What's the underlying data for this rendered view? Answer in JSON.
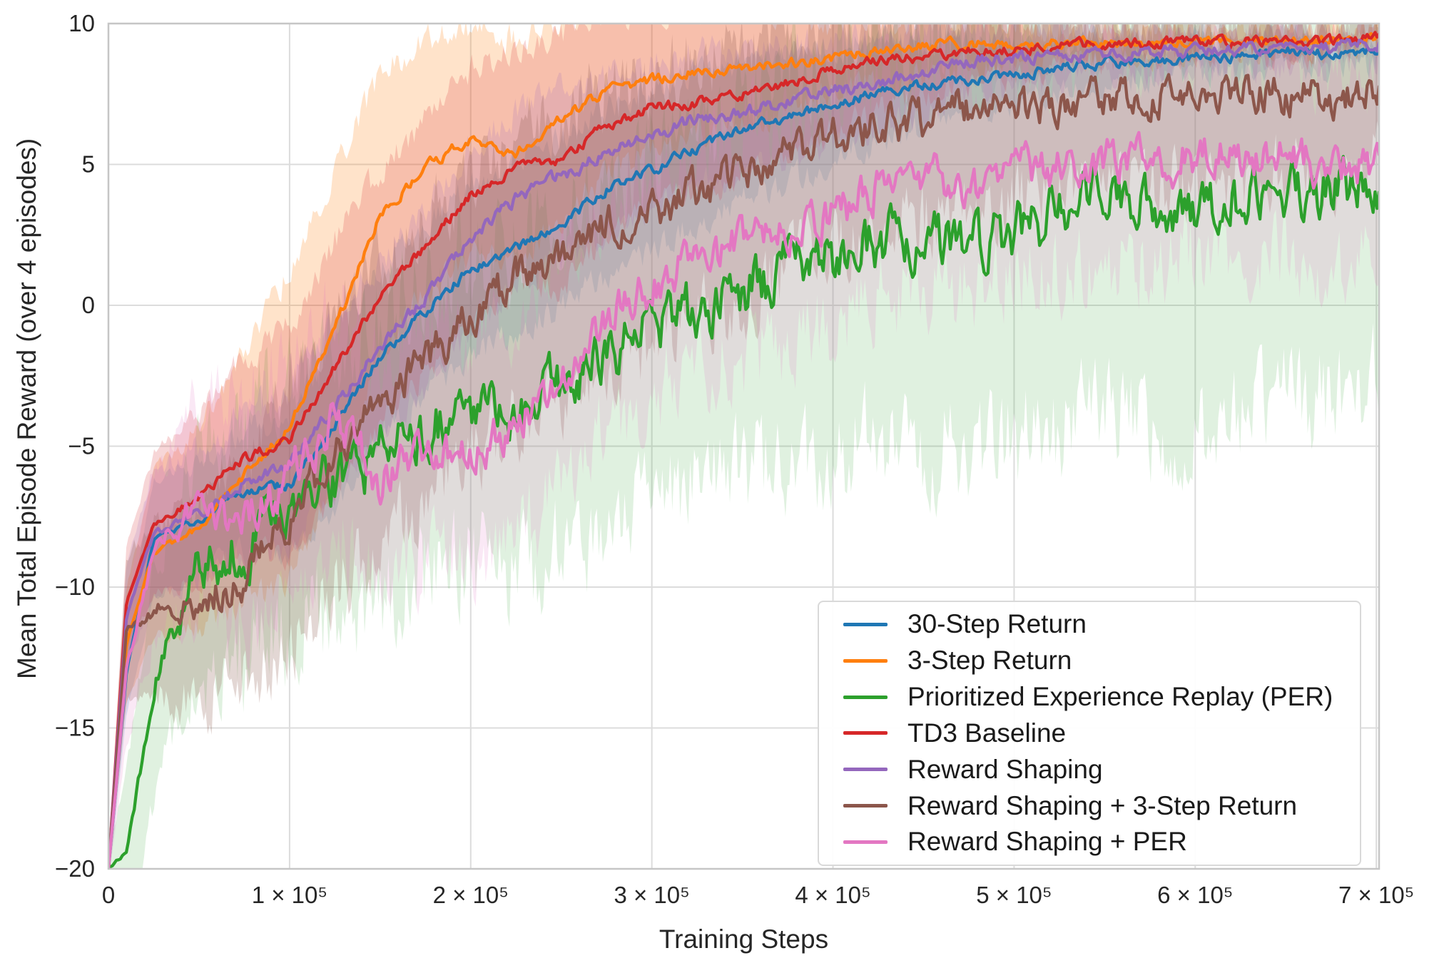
{
  "figure": {
    "background": "#ffffff"
  },
  "axes": {
    "xlabel": "Training Steps",
    "ylabel": "Mean Total Episode Reward (over 4 episodes)",
    "xlim": [
      0,
      701500
    ],
    "ylim": [
      -20,
      10
    ],
    "grid": true,
    "grid_color": "#dcdcdc",
    "spine_color": "#c6c6c6",
    "tick_color": "#262626",
    "x_ticks": [
      {
        "value": 0,
        "label": "0"
      },
      {
        "value": 100000,
        "label": "1 × 10⁵"
      },
      {
        "value": 200000,
        "label": "2 × 10⁵"
      },
      {
        "value": 300000,
        "label": "3 × 10⁵"
      },
      {
        "value": 400000,
        "label": "4 × 10⁵"
      },
      {
        "value": 500000,
        "label": "5 × 10⁵"
      },
      {
        "value": 600000,
        "label": "6 × 10⁵"
      },
      {
        "value": 700000,
        "label": "7 × 10⁵"
      }
    ],
    "y_ticks": [
      {
        "value": 10,
        "label": "10"
      },
      {
        "value": 5,
        "label": "5"
      },
      {
        "value": 0,
        "label": "0"
      },
      {
        "value": -5,
        "label": "−5"
      },
      {
        "value": -10,
        "label": "−10"
      },
      {
        "value": -15,
        "label": "−15"
      },
      {
        "value": -20,
        "label": "−20"
      }
    ]
  },
  "legend": {
    "position": "lower right"
  },
  "chart_data": {
    "type": "line",
    "title": "",
    "xlabel": "Training Steps",
    "ylabel": "Mean Total Episode Reward (over 4 episodes)",
    "x": [
      0,
      10000,
      25000,
      50000,
      75000,
      100000,
      125000,
      150000,
      175000,
      200000,
      225000,
      250000,
      275000,
      300000,
      325000,
      350000,
      375000,
      400000,
      425000,
      450000,
      475000,
      500000,
      525000,
      550000,
      575000,
      600000,
      625000,
      650000,
      675000,
      700000
    ],
    "series": [
      {
        "name": "30-Step Return",
        "color": "#1f77b4",
        "noise": 0.24,
        "band_opacity": 0.17,
        "mean": [
          -20,
          -13.0,
          -8.3,
          -7.6,
          -6.6,
          -6.4,
          -4.2,
          -1.8,
          -0.2,
          1.3,
          2.0,
          2.9,
          4.1,
          4.8,
          5.6,
          6.2,
          6.7,
          7.1,
          7.6,
          7.8,
          8.0,
          8.2,
          8.45,
          8.6,
          8.65,
          8.8,
          8.85,
          9.0,
          8.9,
          9.05
        ],
        "band": [
          0.5,
          1.5,
          2.0,
          2.0,
          2.2,
          2.5,
          3.0,
          3.0,
          3.0,
          3.0,
          3.0,
          3.0,
          3.0,
          2.8,
          2.7,
          2.5,
          2.3,
          2.0,
          1.8,
          1.5,
          1.3,
          1.0,
          0.9,
          0.8,
          0.7,
          0.6,
          0.6,
          0.5,
          0.5,
          0.5
        ]
      },
      {
        "name": "3-Step Return",
        "color": "#ff7f0e",
        "noise": 0.24,
        "band_opacity": 0.22,
        "mean": [
          -20,
          -12.0,
          -8.8,
          -7.9,
          -6.0,
          -4.3,
          -0.8,
          3.2,
          4.9,
          5.9,
          5.4,
          6.6,
          7.6,
          8.0,
          8.3,
          8.45,
          8.6,
          8.75,
          9.0,
          9.2,
          9.3,
          9.2,
          9.3,
          9.3,
          9.3,
          9.35,
          9.4,
          9.35,
          9.4,
          9.45
        ],
        "band": [
          0.5,
          2.0,
          3.0,
          3.5,
          4.5,
          5.5,
          5.5,
          5.0,
          4.5,
          4.0,
          4.0,
          3.5,
          3.0,
          2.5,
          2.2,
          2.0,
          1.6,
          1.2,
          1.0,
          0.9,
          0.8,
          0.7,
          0.6,
          0.6,
          0.5,
          0.5,
          0.5,
          0.4,
          0.4,
          0.4
        ]
      },
      {
        "name": "Prioritized Experience Replay (PER)",
        "color": "#2ca02c",
        "noise": 1.35,
        "band_opacity": 0.15,
        "mean": [
          -20,
          -19.5,
          -13.5,
          -9.2,
          -8.6,
          -7.0,
          -6.2,
          -5.4,
          -4.6,
          -3.6,
          -3.8,
          -2.8,
          -1.9,
          -0.8,
          -0.2,
          0.5,
          1.2,
          1.7,
          2.4,
          2.2,
          2.0,
          2.6,
          3.2,
          3.9,
          3.6,
          3.5,
          3.8,
          4.2,
          4.0,
          4.5
        ],
        "band": [
          0.5,
          3.0,
          4.0,
          4.0,
          4.0,
          4.5,
          4.8,
          5.0,
          5.2,
          5.5,
          5.7,
          6.0,
          6.0,
          6.2,
          6.4,
          6.5,
          6.8,
          7.0,
          7.2,
          7.3,
          7.4,
          7.5,
          7.7,
          7.8,
          7.8,
          8.0,
          7.8,
          7.5,
          7.4,
          7.3
        ]
      },
      {
        "name": "TD3 Baseline",
        "color": "#d62728",
        "noise": 0.24,
        "band_opacity": 0.19,
        "mean": [
          -20,
          -10.5,
          -7.8,
          -6.8,
          -5.4,
          -4.8,
          -2.2,
          0.3,
          2.1,
          3.9,
          4.9,
          5.1,
          6.4,
          7.0,
          7.2,
          7.5,
          7.9,
          8.4,
          8.7,
          8.85,
          9.0,
          9.05,
          9.2,
          9.3,
          9.3,
          9.4,
          9.35,
          9.4,
          9.4,
          9.5
        ],
        "band": [
          0.5,
          2.0,
          2.5,
          3.0,
          3.5,
          4.0,
          4.5,
          4.5,
          4.5,
          4.5,
          4.2,
          4.5,
          4.0,
          3.5,
          3.2,
          3.0,
          2.6,
          2.2,
          1.8,
          1.4,
          1.1,
          0.9,
          0.8,
          0.7,
          0.6,
          0.5,
          0.5,
          0.5,
          0.4,
          0.4
        ]
      },
      {
        "name": "Reward Shaping",
        "color": "#9467bd",
        "noise": 0.3,
        "band_opacity": 0.17,
        "mean": [
          -20,
          -11.0,
          -8.1,
          -7.4,
          -6.3,
          -5.6,
          -3.6,
          -1.5,
          0.3,
          2.3,
          3.8,
          4.6,
          5.4,
          6.0,
          6.6,
          6.85,
          7.2,
          7.6,
          7.9,
          8.2,
          8.7,
          8.75,
          8.9,
          8.9,
          9.0,
          9.0,
          9.1,
          9.1,
          9.2,
          9.3
        ],
        "band": [
          0.5,
          1.8,
          2.2,
          2.3,
          2.5,
          2.8,
          3.0,
          3.2,
          3.2,
          3.2,
          3.0,
          3.0,
          2.8,
          2.6,
          2.4,
          2.2,
          2.0,
          1.8,
          1.6,
          1.4,
          1.2,
          1.0,
          0.9,
          0.8,
          0.7,
          0.7,
          0.6,
          0.6,
          0.5,
          0.5
        ]
      },
      {
        "name": "Reward Shaping + 3-Step Return",
        "color": "#8c564b",
        "noise": 0.92,
        "band_opacity": 0.24,
        "mean": [
          -20,
          -11.5,
          -10.8,
          -10.6,
          -9.6,
          -7.6,
          -5.2,
          -3.5,
          -1.9,
          -0.5,
          0.9,
          1.7,
          2.9,
          3.3,
          4.1,
          4.7,
          5.5,
          6.1,
          6.5,
          6.6,
          7.0,
          7.0,
          7.2,
          7.3,
          7.4,
          7.3,
          7.6,
          7.5,
          7.4,
          7.9
        ],
        "band": [
          0.5,
          2.5,
          3.0,
          3.5,
          4.0,
          4.5,
          5.0,
          5.0,
          5.0,
          5.0,
          5.0,
          5.0,
          4.8,
          4.6,
          4.6,
          4.5,
          4.3,
          4.0,
          3.8,
          3.6,
          3.5,
          3.5,
          3.2,
          3.0,
          3.0,
          3.0,
          2.9,
          2.8,
          2.8,
          2.8
        ]
      },
      {
        "name": "Reward Shaping + PER",
        "color": "#e377c2",
        "noise": 1.05,
        "band_opacity": 0.17,
        "mean": [
          -20,
          -13.0,
          -8.9,
          -6.9,
          -7.6,
          -6.1,
          -4.0,
          -6.3,
          -5.0,
          -5.3,
          -4.3,
          -2.6,
          -0.2,
          0.8,
          1.8,
          2.1,
          2.6,
          3.3,
          4.2,
          4.4,
          4.2,
          4.6,
          4.8,
          5.2,
          5.0,
          5.4,
          5.2,
          5.6,
          4.8,
          5.1
        ],
        "band": [
          0.5,
          2.5,
          3.0,
          3.5,
          3.8,
          4.0,
          4.0,
          4.0,
          4.0,
          4.0,
          4.0,
          4.0,
          4.0,
          4.0,
          4.0,
          4.0,
          4.0,
          4.0,
          3.9,
          3.8,
          3.8,
          3.7,
          3.7,
          3.6,
          3.6,
          3.6,
          3.5,
          3.5,
          3.5,
          3.5
        ]
      }
    ]
  }
}
